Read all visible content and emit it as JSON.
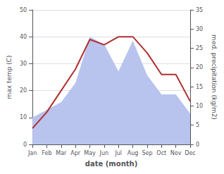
{
  "chart_data": {
    "type": "line",
    "categories": [
      "Jan",
      "Feb",
      "Mar",
      "Apr",
      "May",
      "Jun",
      "Jul",
      "Aug",
      "Sep",
      "Oct",
      "Nov",
      "Dec"
    ],
    "xlabel": "date (month)",
    "ylabel": "max temp (C)",
    "y2label": "med. precipitation (kg/m2)",
    "series": [
      {
        "type": "area",
        "color": "#b8c4ee",
        "axis": "y2",
        "values": [
          7,
          9,
          11,
          16,
          28,
          26,
          19,
          27,
          18,
          13,
          13,
          8
        ]
      },
      {
        "type": "line",
        "color": "#b03030",
        "values": [
          6,
          12,
          20,
          28,
          39,
          37,
          40,
          40,
          34,
          26,
          26,
          16
        ]
      }
    ],
    "ylim": [
      0,
      50
    ],
    "yticks": [
      0,
      10,
      20,
      30,
      40,
      50
    ],
    "y2lim": [
      0,
      35
    ],
    "y2ticks": [
      0,
      5,
      10,
      15,
      20,
      25,
      30,
      35
    ],
    "grid": true
  }
}
